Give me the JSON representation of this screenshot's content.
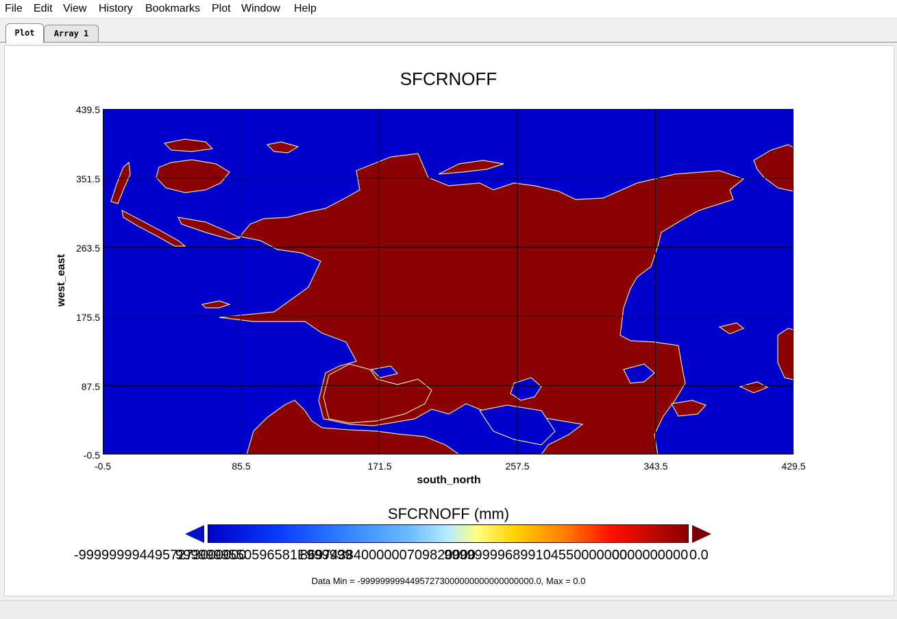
{
  "menu": [
    "File",
    "Edit",
    "View",
    "History",
    "Bookmarks",
    "Plot",
    "Window",
    "Help"
  ],
  "tabs": [
    {
      "label": "Plot",
      "active": true
    },
    {
      "label": "Array 1",
      "active": false
    }
  ],
  "chart_data": {
    "type": "heatmap",
    "title": "SFCRNOFF",
    "xlabel": "south_north",
    "ylabel": "west_east",
    "xticks": [
      "-0.5",
      "85.5",
      "171.5",
      "257.5",
      "343.5",
      "429.5"
    ],
    "yticks": [
      "439.5",
      "351.5",
      "263.5",
      "175.5",
      "87.5",
      "-0.5"
    ],
    "xlim": [
      -0.5,
      429.5
    ],
    "ylim": [
      -0.5,
      439.5
    ],
    "grid": true,
    "colormap": "blue-red",
    "colors": {
      "low": "#0000cd",
      "high": "#8b0000"
    }
  },
  "colorbar": {
    "title": "SFCRNOFF (mm)",
    "labels": [
      "-9999999944957273000000",
      "9999999550596581E999999",
      "86974384000000709820000",
      "999999996899104550000000",
      "0000000000",
      "0.0"
    ]
  },
  "data_info": "Data Min = -99999999944957273000000000000000000.0, Max = 0.0"
}
